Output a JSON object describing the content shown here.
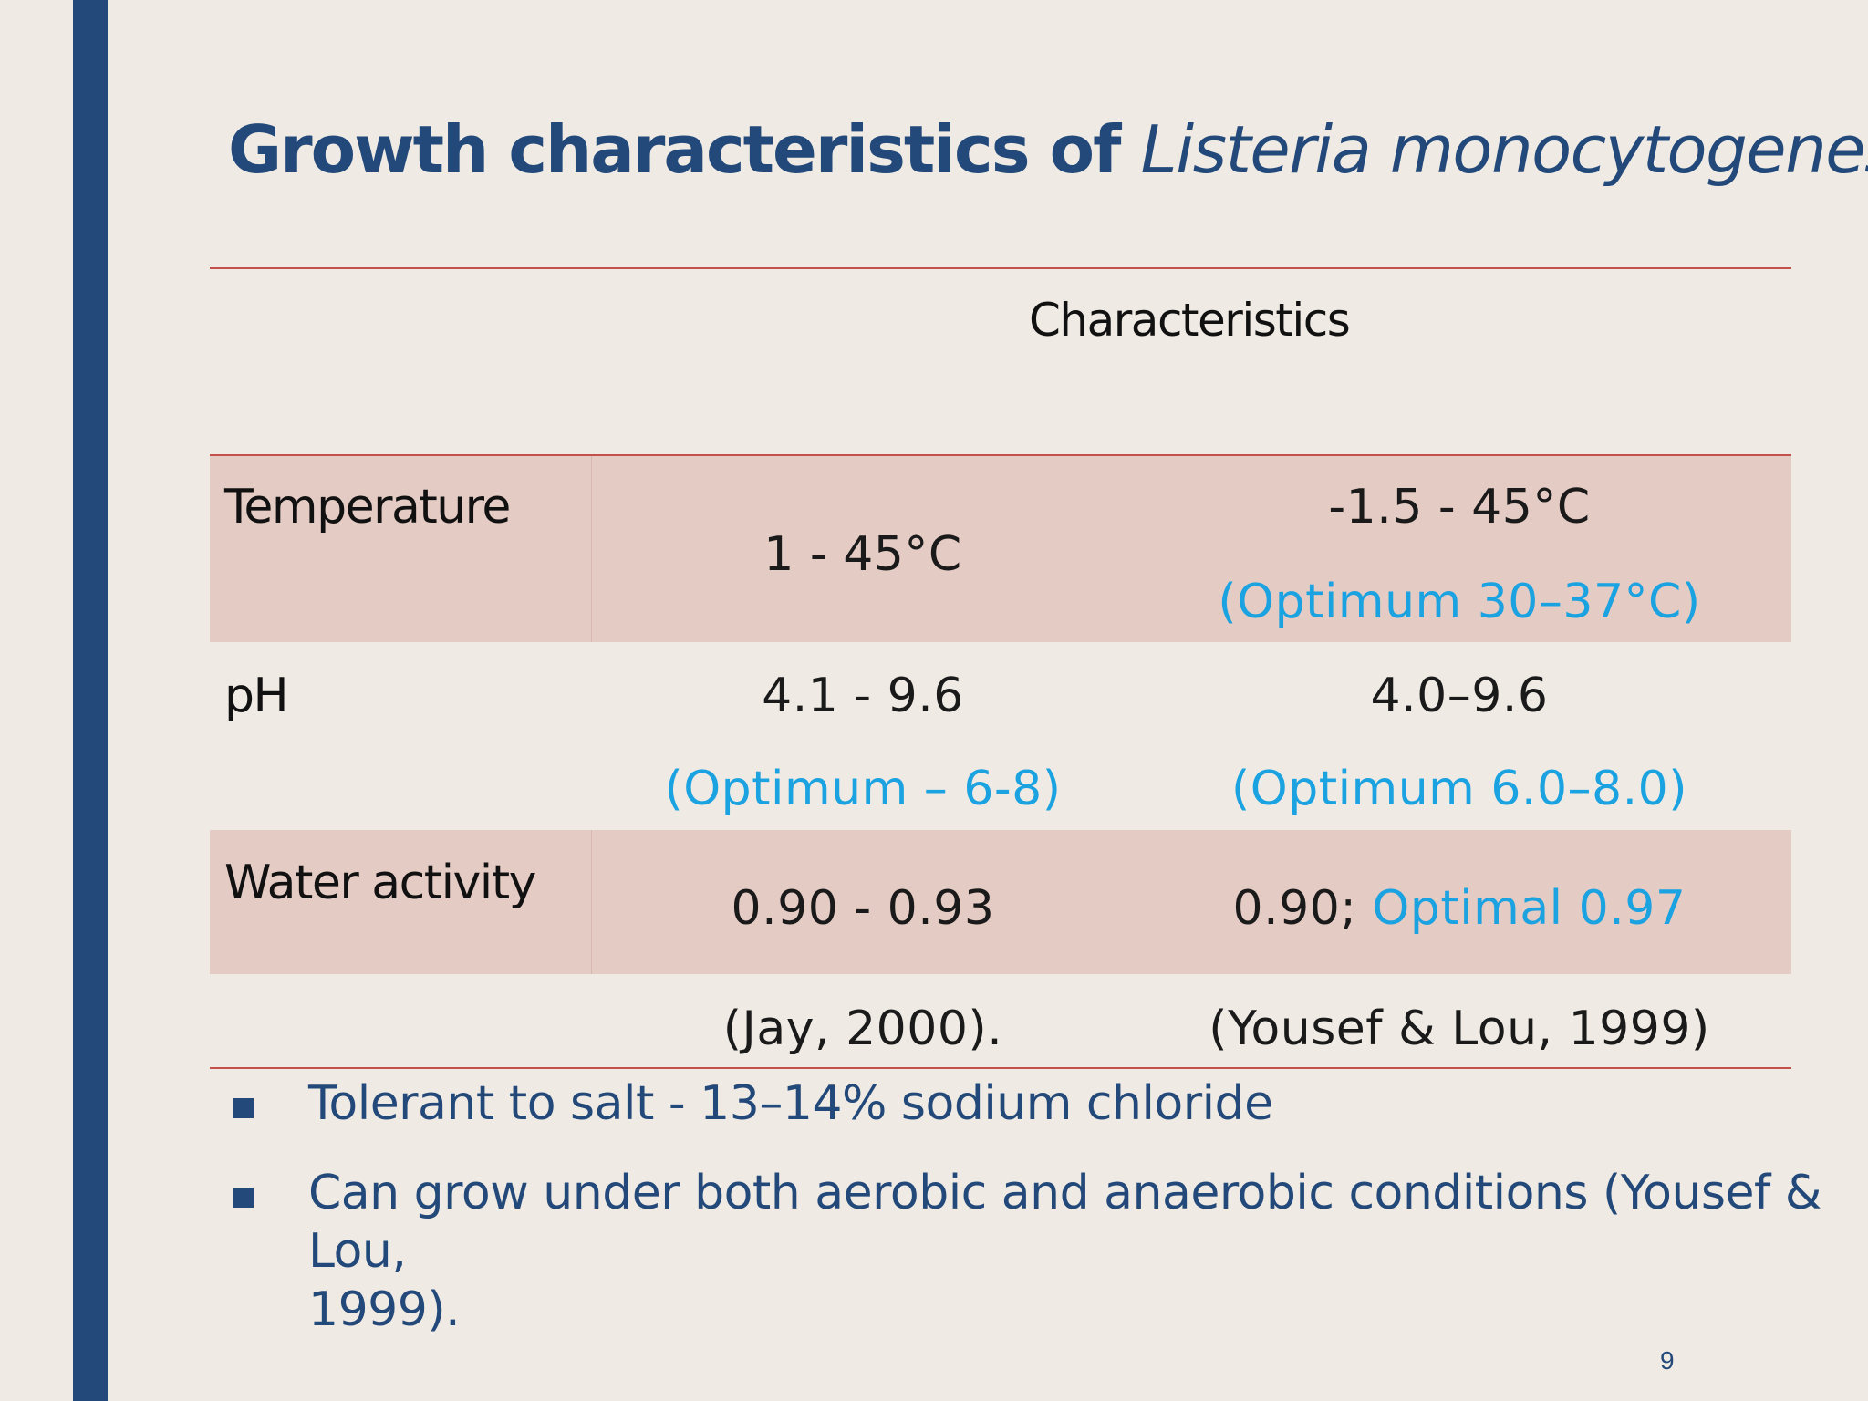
{
  "slide": {
    "title_main": "Growth characteristics of ",
    "title_italic": "Listeria monocytogenes",
    "page_number": "9",
    "accent_color": "#23497a",
    "highlight_color": "#1ba2e0"
  },
  "table": {
    "header": "Characteristics",
    "rows": [
      {
        "label": "Temperature",
        "col1": "1 - 45°C",
        "col2_line1": "-1.5 - 45°C",
        "col2_line2": "(Optimum 30–37°C)"
      },
      {
        "label": "pH",
        "col1_line1": "4.1 - 9.6",
        "col1_line2": "(Optimum – 6-8)",
        "col2_line1": "4.0–9.6",
        "col2_line2": "(Optimum 6.0–8.0)"
      },
      {
        "label": "Water activity",
        "col1": "0.90 - 0.93",
        "col2_black": "0.90; ",
        "col2_blue": "Optimal 0.97"
      }
    ],
    "sources": {
      "col1": "(Jay, 2000).",
      "col2": "(Yousef & Lou, 1999)"
    }
  },
  "bullets": [
    {
      "line1": "Tolerant to salt  - 13–14% sodium chloride"
    },
    {
      "line1": "Can grow under both aerobic and anaerobic conditions (Yousef & Lou,",
      "line2": "1999)."
    }
  ]
}
